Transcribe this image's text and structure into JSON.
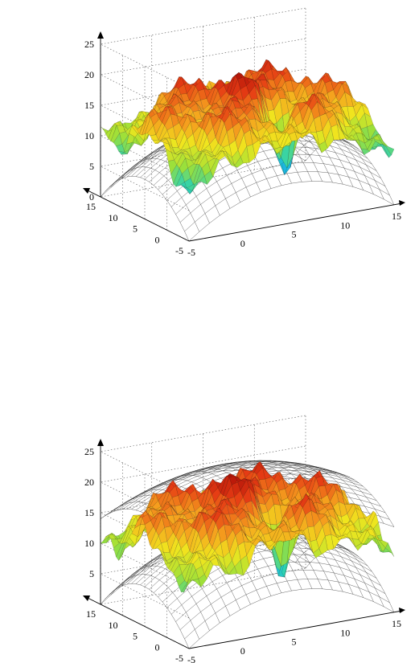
{
  "chart_data": [
    {
      "type": "surface3d",
      "title": "",
      "xlabel": "",
      "ylabel": "",
      "zlabel": "",
      "x_ticks": [
        "0",
        "5",
        "10",
        "15"
      ],
      "x_first_tick": "-5",
      "y_ticks": [
        "-5",
        "0",
        "5",
        "10",
        "15"
      ],
      "z_ticks": [
        "0",
        "5",
        "10",
        "15",
        "20",
        "25"
      ],
      "xlim": [
        -5,
        15
      ],
      "ylim": [
        -5,
        15
      ],
      "zlim": [
        0,
        25
      ],
      "grid": true,
      "colormap": [
        "#1a40c8",
        "#19b4e6",
        "#2ed3b0",
        "#9be03a",
        "#f0e61e",
        "#f5a01e",
        "#e63c14",
        "#b41408"
      ],
      "series": [
        {
          "kind": "wireframe paraboloid (reference)",
          "z_at_center": 13,
          "z_at_corner": 0
        },
        {
          "kind": "colored measured surface",
          "mean_height": 14,
          "min_height": 3,
          "max_height": 21
        }
      ]
    },
    {
      "type": "surface3d",
      "title": "",
      "xlabel": "",
      "ylabel": "",
      "zlabel": "",
      "x_ticks": [
        "0",
        "5",
        "10",
        "15"
      ],
      "x_first_tick": "-5",
      "y_ticks": [
        "-5",
        "0",
        "5",
        "10",
        "15"
      ],
      "z_ticks": [
        "5",
        "10",
        "15",
        "20",
        "25"
      ],
      "xlim": [
        -5,
        15
      ],
      "ylim": [
        -5,
        15
      ],
      "zlim": [
        0,
        25
      ],
      "grid": true,
      "colormap": [
        "#1a40c8",
        "#19b4e6",
        "#2ed3b0",
        "#9be03a",
        "#f0e61e",
        "#f5a01e",
        "#e63c14",
        "#b41408"
      ],
      "series": [
        {
          "kind": "wireframe paraboloid (reference, upper)",
          "z_at_center": 23,
          "z_at_corner": 14
        },
        {
          "kind": "wireframe paraboloid (reference, lower)",
          "z_at_center": 13,
          "z_at_corner": 0
        },
        {
          "kind": "colored measured surface",
          "mean_height": 15,
          "min_height": 2,
          "max_height": 22
        }
      ]
    }
  ]
}
